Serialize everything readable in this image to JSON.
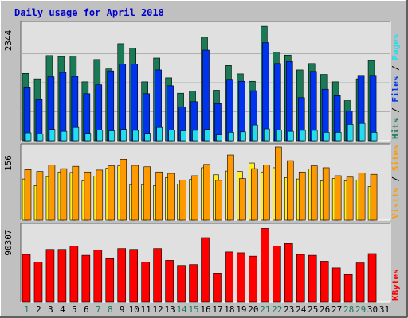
{
  "title": "Daily usage for April 2018",
  "colors": {
    "background": "#c0c0c0",
    "plot_bg": "#e0e0e0",
    "title": "#0000cc",
    "hits": "#1a7a55",
    "files": "#0033ee",
    "pages": "#22ddee",
    "visits": "#ff9900",
    "sites": "#ffee22",
    "kbytes": "#ff0000",
    "weekend_label": "#1a7a55",
    "weekday_label": "#000000"
  },
  "chart_data": [
    {
      "type": "bar",
      "title": "Daily usage for April 2018",
      "ylabel": "Pages / Files / Hits",
      "ymax_label": "2344",
      "ylim": [
        0,
        2344
      ],
      "categories": [
        "1",
        "2",
        "3",
        "4",
        "5",
        "6",
        "7",
        "8",
        "9",
        "10",
        "11",
        "12",
        "13",
        "14",
        "15",
        "16",
        "17",
        "18",
        "19",
        "20",
        "21",
        "22",
        "23",
        "24",
        "25",
        "26",
        "27",
        "28",
        "29",
        "30",
        "31"
      ],
      "series": [
        {
          "name": "Hits",
          "values": [
            1360,
            1250,
            1720,
            1700,
            1710,
            1190,
            1640,
            1450,
            1960,
            1870,
            1190,
            1670,
            1270,
            960,
            1000,
            2090,
            1020,
            1520,
            1350,
            1200,
            2310,
            1790,
            1730,
            1430,
            1560,
            1340,
            1190,
            810,
            1250,
            1620,
            0
          ]
        },
        {
          "name": "Files",
          "values": [
            1070,
            830,
            1290,
            1380,
            1300,
            950,
            1130,
            1410,
            1550,
            1550,
            950,
            1430,
            1110,
            680,
            790,
            1830,
            750,
            1240,
            1200,
            1010,
            1980,
            1560,
            1600,
            870,
            1400,
            1040,
            910,
            600,
            1320,
            1320,
            0
          ]
        },
        {
          "name": "Pages",
          "values": [
            160,
            140,
            230,
            190,
            270,
            150,
            220,
            200,
            230,
            210,
            150,
            270,
            220,
            200,
            210,
            230,
            120,
            170,
            180,
            320,
            240,
            220,
            190,
            210,
            210,
            170,
            170,
            330,
            350,
            170,
            0
          ]
        }
      ]
    },
    {
      "type": "bar",
      "ylabel": "Sites / Visits",
      "ymax_label": "156",
      "ylim": [
        0,
        156
      ],
      "categories": [
        "1",
        "2",
        "3",
        "4",
        "5",
        "6",
        "7",
        "8",
        "9",
        "10",
        "11",
        "12",
        "13",
        "14",
        "15",
        "16",
        "17",
        "18",
        "19",
        "20",
        "21",
        "22",
        "23",
        "24",
        "25",
        "26",
        "27",
        "28",
        "29",
        "30",
        "31"
      ],
      "series": [
        {
          "name": "Visits",
          "values": [
            108,
            104,
            118,
            110,
            115,
            103,
            107,
            116,
            130,
            117,
            114,
            103,
            100,
            86,
            95,
            119,
            85,
            139,
            89,
            110,
            118,
            159,
            127,
            103,
            116,
            112,
            95,
            92,
            101,
            98,
            0
          ]
        },
        {
          "name": "Sites",
          "values": [
            88,
            74,
            93,
            103,
            102,
            84,
            94,
            111,
            116,
            76,
            76,
            74,
            91,
            77,
            87,
            112,
            97,
            105,
            104,
            122,
            103,
            112,
            91,
            88,
            109,
            84,
            89,
            84,
            86,
            72,
            0
          ]
        }
      ]
    },
    {
      "type": "bar",
      "ylabel": "KBytes",
      "ymax_label": "90307",
      "ylim": [
        0,
        90307
      ],
      "categories": [
        "1",
        "2",
        "3",
        "4",
        "5",
        "6",
        "7",
        "8",
        "9",
        "10",
        "11",
        "12",
        "13",
        "14",
        "15",
        "16",
        "17",
        "18",
        "19",
        "20",
        "21",
        "22",
        "23",
        "24",
        "25",
        "26",
        "27",
        "28",
        "29",
        "30",
        "31"
      ],
      "series": [
        {
          "name": "KBytes",
          "values": [
            57000,
            48000,
            63000,
            63000,
            67000,
            56000,
            62000,
            52000,
            64000,
            63000,
            48000,
            64000,
            50000,
            44000,
            45000,
            77000,
            34000,
            60000,
            59000,
            55000,
            88000,
            67000,
            70000,
            57000,
            56000,
            49000,
            41000,
            33000,
            47000,
            58000,
            0
          ]
        }
      ]
    }
  ],
  "weekend_days": [
    1,
    7,
    8,
    14,
    15,
    21,
    22,
    28,
    29
  ],
  "legends": {
    "top": [
      {
        "text": "Hits",
        "color_key": "hits"
      },
      {
        "text": " / ",
        "color_key": "weekday_label"
      },
      {
        "text": "Files",
        "color_key": "files"
      },
      {
        "text": " / ",
        "color_key": "weekday_label"
      },
      {
        "text": "Pages",
        "color_key": "pages"
      }
    ],
    "middle": [
      {
        "text": "Visits",
        "color_key": "visits"
      },
      {
        "text": " / ",
        "color_key": "weekday_label"
      },
      {
        "text": "Sites",
        "color_key": "visits"
      }
    ],
    "bottom": [
      {
        "text": "KBytes",
        "color_key": "kbytes"
      }
    ]
  }
}
